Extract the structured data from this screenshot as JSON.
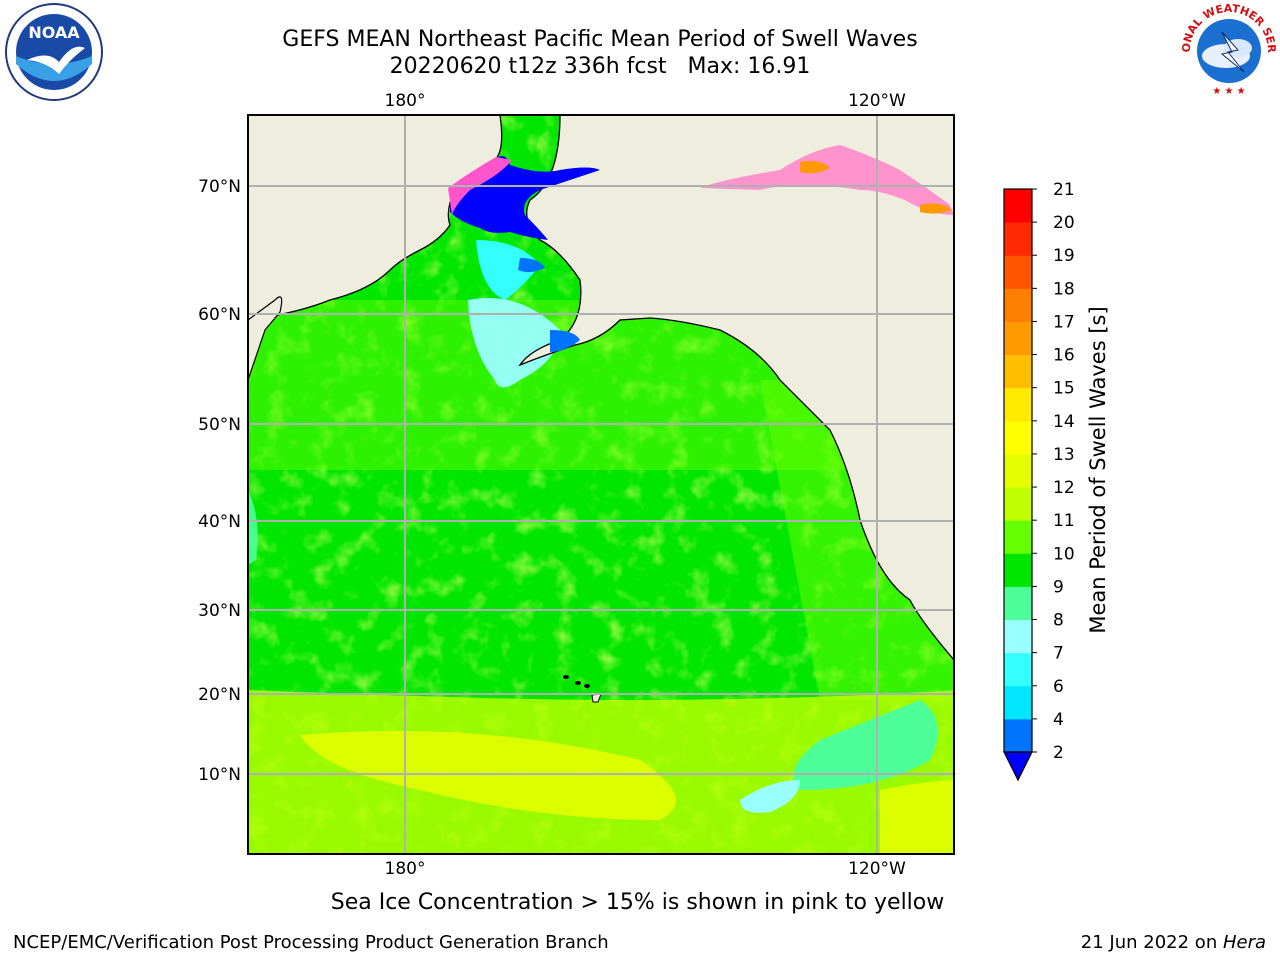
{
  "header": {
    "title_line1": "GEFS MEAN Northeast Pacific Mean Period of Swell Waves",
    "title_line2": "20220620 t12z 336h fcst   Max: 16.91"
  },
  "map": {
    "top_lon_labels": [
      "180°",
      "120°W"
    ],
    "bottom_lon_labels": [
      "180°",
      "120°W"
    ],
    "lat_labels": [
      "70°N",
      "60°N",
      "50°N",
      "40°N",
      "30°N",
      "20°N",
      "10°N"
    ],
    "land_color": "#efedde",
    "grid_color": "#b0b0b0"
  },
  "colorbar": {
    "title": "Mean Period of Swell Waves [s]",
    "tick_labels": [
      "2",
      "4",
      "6",
      "7",
      "8",
      "9",
      "10",
      "11",
      "12",
      "13",
      "14",
      "15",
      "16",
      "17",
      "18",
      "19",
      "20",
      "21"
    ],
    "colors": [
      "#0073ff",
      "#00e6ff",
      "#33ffff",
      "#99ffff",
      "#4dff99",
      "#00e600",
      "#66ff00",
      "#bfff00",
      "#e6ff00",
      "#ffff00",
      "#ffea00",
      "#ffbf00",
      "#ff9900",
      "#ff8000",
      "#ff5500",
      "#ff2a00",
      "#ff0000"
    ],
    "under_color": "#0000ff"
  },
  "note": "Sea Ice Concentration > 15% is shown in pink to yellow",
  "footer": {
    "left": "NCEP/EMC/Verification Post Processing Product Generation Branch",
    "right_prefix": "21 Jun 2022 on ",
    "right_system": "Hera"
  },
  "logos": {
    "noaa_text": "NOAA",
    "nws_text": "NATIONAL WEATHER SERVICE"
  }
}
